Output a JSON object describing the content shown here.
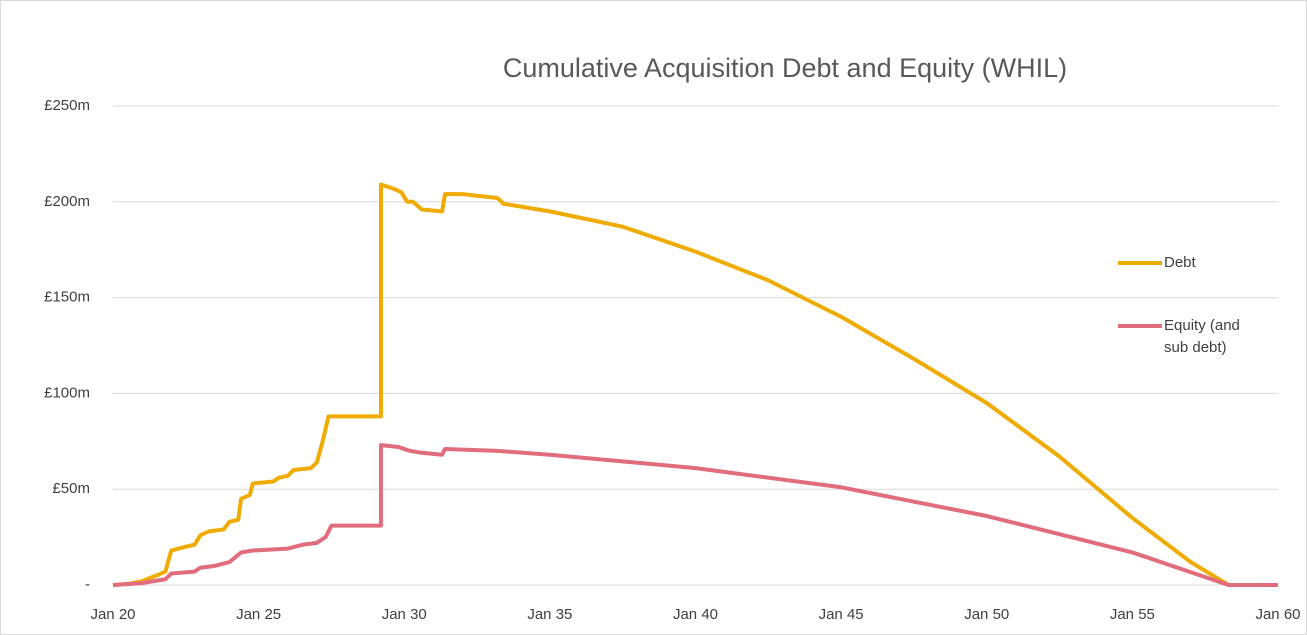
{
  "chart_data": {
    "type": "line",
    "title": "Cumulative Acquisition Debt and Equity (WHIL)",
    "xlim": [
      20,
      60
    ],
    "xticks": [
      {
        "value": 20,
        "label": "Jan 20"
      },
      {
        "value": 25,
        "label": "Jan 25"
      },
      {
        "value": 30,
        "label": "Jan 30"
      },
      {
        "value": 35,
        "label": "Jan 35"
      },
      {
        "value": 40,
        "label": "Jan 40"
      },
      {
        "value": 45,
        "label": "Jan 45"
      },
      {
        "value": 50,
        "label": "Jan 50"
      },
      {
        "value": 55,
        "label": "Jan 55"
      },
      {
        "value": 60,
        "label": "Jan 60"
      }
    ],
    "ylim": [
      0,
      250
    ],
    "yticks": [
      {
        "value": 0,
        "label": "-"
      },
      {
        "value": 50,
        "label": "£50m"
      },
      {
        "value": 100,
        "label": "£100m"
      },
      {
        "value": 150,
        "label": "£150m"
      },
      {
        "value": 200,
        "label": "£200m"
      },
      {
        "value": 250,
        "label": "£250m"
      }
    ],
    "grid": true,
    "legend": "right",
    "series": [
      {
        "name": "Debt",
        "color": "#f0ab00",
        "x": [
          20,
          20.5,
          21,
          21.5,
          21.8,
          22,
          22.5,
          22.8,
          23,
          23.3,
          23.8,
          24,
          24.3,
          24.4,
          24.7,
          24.8,
          25.5,
          25.7,
          26,
          26.2,
          26.8,
          27,
          27.2,
          27.4,
          29.2,
          29.2,
          29.6,
          29.9,
          30.1,
          30.3,
          30.6,
          31.3,
          31.4,
          32,
          33.2,
          33.4,
          35,
          37.5,
          40,
          42.5,
          45,
          47.5,
          50,
          52.5,
          55,
          57,
          58.3,
          60
        ],
        "values": [
          0,
          0.5,
          2,
          5,
          7,
          18,
          20,
          21,
          26,
          28,
          29,
          33,
          34,
          45,
          47,
          53,
          54,
          56,
          57,
          60,
          61,
          64,
          75,
          88,
          88,
          209,
          207,
          205,
          200,
          200,
          196,
          195,
          204,
          204,
          202,
          199,
          195,
          187,
          174,
          159,
          140,
          118,
          95,
          67,
          35,
          12,
          0,
          0
        ]
      },
      {
        "name": "Equity (and sub debt)",
        "color": "#e06c7c",
        "x": [
          20,
          21,
          21.8,
          22,
          22.8,
          23,
          23.5,
          24,
          24.4,
          24.8,
          26,
          26.5,
          27,
          27.3,
          27.5,
          29.2,
          29.2,
          29.8,
          30.2,
          30.6,
          31.3,
          31.4,
          33.2,
          35,
          40,
          45,
          50,
          55,
          58.3,
          60
        ],
        "values": [
          0,
          1,
          3,
          6,
          7,
          9,
          10,
          12,
          17,
          18,
          19,
          21,
          22,
          25,
          31,
          31,
          73,
          72,
          70,
          69,
          68,
          71,
          70,
          68,
          61,
          51,
          36,
          17,
          0,
          0
        ]
      }
    ]
  }
}
